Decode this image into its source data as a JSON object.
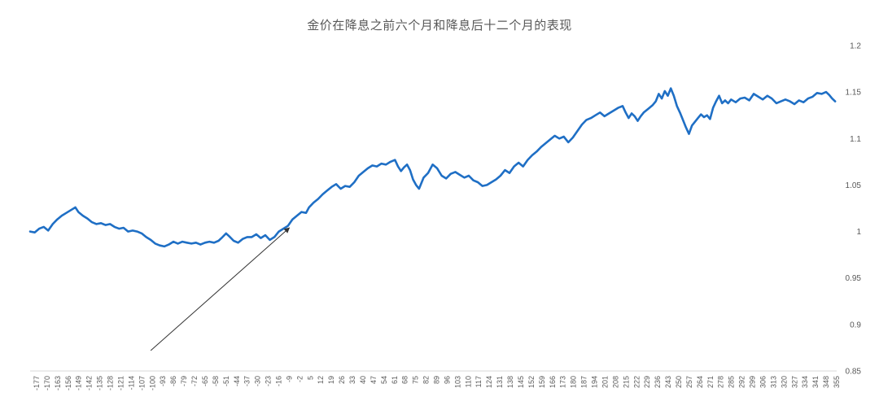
{
  "chart_data": {
    "type": "line",
    "title": "金价在降息之前六个月和降息后十二个月的表现",
    "xlabel": "",
    "ylabel": "",
    "ylim": [
      0.85,
      1.2
    ],
    "yticks": [
      0.85,
      0.9,
      0.95,
      1,
      1.05,
      1.1,
      1.15,
      1.2
    ],
    "ytick_labels": [
      "0.85",
      "0.9",
      "0.95",
      "1",
      "1.05",
      "1.1",
      "1.15",
      "1.2"
    ],
    "y_axis_side": "right",
    "grid": false,
    "legend": "none",
    "x_tick_labels": [
      "-177",
      "-170",
      "-163",
      "-156",
      "-149",
      "-142",
      "-135",
      "-128",
      "-121",
      "-114",
      "-107",
      "-100",
      "-93",
      "-86",
      "-79",
      "-72",
      "-65",
      "-58",
      "-51",
      "-44",
      "-37",
      "-30",
      "-23",
      "-16",
      "-9",
      "-2",
      "5",
      "12",
      "19",
      "26",
      "33",
      "40",
      "47",
      "54",
      "61",
      "68",
      "75",
      "82",
      "89",
      "96",
      "103",
      "110",
      "117",
      "124",
      "131",
      "138",
      "145",
      "152",
      "159",
      "166",
      "173",
      "180",
      "187",
      "194",
      "201",
      "208",
      "215",
      "222",
      "229",
      "236",
      "243",
      "250",
      "257",
      "264",
      "271",
      "278",
      "285",
      "292",
      "299",
      "306",
      "313",
      "320",
      "327",
      "334",
      "341",
      "348",
      "355"
    ],
    "xlim": [
      -178,
      357
    ],
    "colors": {
      "series": "#1f6fc5",
      "text": "#595959",
      "axis": "#d9d9d9",
      "arrow": "#333333"
    },
    "series": [
      {
        "points": [
          [
            -178,
            1.0
          ],
          [
            -175,
            0.999
          ],
          [
            -172,
            1.003
          ],
          [
            -169,
            1.005
          ],
          [
            -166,
            1.001
          ],
          [
            -163,
            1.008
          ],
          [
            -160,
            1.013
          ],
          [
            -157,
            1.017
          ],
          [
            -154,
            1.02
          ],
          [
            -151,
            1.023
          ],
          [
            -148,
            1.026
          ],
          [
            -146,
            1.021
          ],
          [
            -143,
            1.017
          ],
          [
            -140,
            1.014
          ],
          [
            -137,
            1.01
          ],
          [
            -134,
            1.008
          ],
          [
            -131,
            1.009
          ],
          [
            -128,
            1.007
          ],
          [
            -125,
            1.008
          ],
          [
            -122,
            1.005
          ],
          [
            -119,
            1.003
          ],
          [
            -116,
            1.004
          ],
          [
            -113,
            1.0
          ],
          [
            -110,
            1.001
          ],
          [
            -107,
            1.0
          ],
          [
            -104,
            0.998
          ],
          [
            -101,
            0.994
          ],
          [
            -98,
            0.991
          ],
          [
            -95,
            0.987
          ],
          [
            -92,
            0.985
          ],
          [
            -89,
            0.984
          ],
          [
            -86,
            0.986
          ],
          [
            -83,
            0.989
          ],
          [
            -80,
            0.987
          ],
          [
            -77,
            0.989
          ],
          [
            -74,
            0.988
          ],
          [
            -71,
            0.987
          ],
          [
            -68,
            0.988
          ],
          [
            -65,
            0.986
          ],
          [
            -62,
            0.988
          ],
          [
            -59,
            0.989
          ],
          [
            -56,
            0.988
          ],
          [
            -53,
            0.99
          ],
          [
            -51,
            0.993
          ],
          [
            -48,
            0.998
          ],
          [
            -46,
            0.995
          ],
          [
            -43,
            0.99
          ],
          [
            -40,
            0.988
          ],
          [
            -37,
            0.992
          ],
          [
            -34,
            0.994
          ],
          [
            -31,
            0.994
          ],
          [
            -28,
            0.997
          ],
          [
            -25,
            0.993
          ],
          [
            -22,
            0.996
          ],
          [
            -19,
            0.991
          ],
          [
            -16,
            0.994
          ],
          [
            -13,
            1.0
          ],
          [
            -10,
            1.003
          ],
          [
            -7,
            1.006
          ],
          [
            -4,
            1.013
          ],
          [
            -1,
            1.017
          ],
          [
            2,
            1.021
          ],
          [
            5,
            1.02
          ],
          [
            7,
            1.026
          ],
          [
            10,
            1.031
          ],
          [
            13,
            1.035
          ],
          [
            16,
            1.04
          ],
          [
            19,
            1.044
          ],
          [
            22,
            1.048
          ],
          [
            25,
            1.051
          ],
          [
            28,
            1.046
          ],
          [
            31,
            1.049
          ],
          [
            34,
            1.048
          ],
          [
            37,
            1.053
          ],
          [
            40,
            1.06
          ],
          [
            43,
            1.064
          ],
          [
            46,
            1.068
          ],
          [
            49,
            1.071
          ],
          [
            52,
            1.07
          ],
          [
            55,
            1.073
          ],
          [
            58,
            1.072
          ],
          [
            61,
            1.075
          ],
          [
            64,
            1.077
          ],
          [
            66,
            1.07
          ],
          [
            68,
            1.065
          ],
          [
            70,
            1.069
          ],
          [
            72,
            1.072
          ],
          [
            74,
            1.066
          ],
          [
            76,
            1.056
          ],
          [
            78,
            1.05
          ],
          [
            80,
            1.046
          ],
          [
            83,
            1.058
          ],
          [
            86,
            1.063
          ],
          [
            89,
            1.072
          ],
          [
            92,
            1.068
          ],
          [
            95,
            1.06
          ],
          [
            98,
            1.057
          ],
          [
            101,
            1.062
          ],
          [
            104,
            1.064
          ],
          [
            107,
            1.061
          ],
          [
            110,
            1.058
          ],
          [
            113,
            1.06
          ],
          [
            116,
            1.055
          ],
          [
            119,
            1.053
          ],
          [
            122,
            1.049
          ],
          [
            125,
            1.05
          ],
          [
            128,
            1.053
          ],
          [
            131,
            1.056
          ],
          [
            134,
            1.06
          ],
          [
            137,
            1.066
          ],
          [
            140,
            1.063
          ],
          [
            143,
            1.07
          ],
          [
            146,
            1.074
          ],
          [
            149,
            1.07
          ],
          [
            152,
            1.077
          ],
          [
            155,
            1.082
          ],
          [
            158,
            1.086
          ],
          [
            161,
            1.091
          ],
          [
            164,
            1.095
          ],
          [
            167,
            1.099
          ],
          [
            170,
            1.103
          ],
          [
            173,
            1.1
          ],
          [
            176,
            1.102
          ],
          [
            179,
            1.096
          ],
          [
            182,
            1.101
          ],
          [
            185,
            1.108
          ],
          [
            188,
            1.115
          ],
          [
            191,
            1.12
          ],
          [
            194,
            1.122
          ],
          [
            197,
            1.125
          ],
          [
            200,
            1.128
          ],
          [
            203,
            1.124
          ],
          [
            206,
            1.127
          ],
          [
            209,
            1.13
          ],
          [
            212,
            1.133
          ],
          [
            215,
            1.135
          ],
          [
            217,
            1.128
          ],
          [
            219,
            1.122
          ],
          [
            221,
            1.127
          ],
          [
            223,
            1.124
          ],
          [
            225,
            1.119
          ],
          [
            227,
            1.124
          ],
          [
            229,
            1.128
          ],
          [
            232,
            1.132
          ],
          [
            235,
            1.136
          ],
          [
            237,
            1.14
          ],
          [
            239,
            1.148
          ],
          [
            241,
            1.143
          ],
          [
            243,
            1.151
          ],
          [
            245,
            1.146
          ],
          [
            247,
            1.154
          ],
          [
            249,
            1.146
          ],
          [
            251,
            1.135
          ],
          [
            253,
            1.128
          ],
          [
            255,
            1.12
          ],
          [
            257,
            1.112
          ],
          [
            259,
            1.105
          ],
          [
            261,
            1.114
          ],
          [
            263,
            1.118
          ],
          [
            265,
            1.122
          ],
          [
            267,
            1.126
          ],
          [
            269,
            1.123
          ],
          [
            271,
            1.125
          ],
          [
            273,
            1.121
          ],
          [
            275,
            1.133
          ],
          [
            277,
            1.14
          ],
          [
            279,
            1.146
          ],
          [
            281,
            1.138
          ],
          [
            283,
            1.141
          ],
          [
            285,
            1.138
          ],
          [
            287,
            1.142
          ],
          [
            290,
            1.139
          ],
          [
            293,
            1.143
          ],
          [
            296,
            1.144
          ],
          [
            299,
            1.141
          ],
          [
            302,
            1.148
          ],
          [
            305,
            1.145
          ],
          [
            308,
            1.142
          ],
          [
            311,
            1.146
          ],
          [
            314,
            1.143
          ],
          [
            317,
            1.138
          ],
          [
            320,
            1.14
          ],
          [
            323,
            1.142
          ],
          [
            326,
            1.14
          ],
          [
            329,
            1.137
          ],
          [
            332,
            1.141
          ],
          [
            335,
            1.139
          ],
          [
            338,
            1.143
          ],
          [
            341,
            1.145
          ],
          [
            344,
            1.149
          ],
          [
            347,
            1.148
          ],
          [
            350,
            1.15
          ],
          [
            352,
            1.147
          ],
          [
            354,
            1.143
          ],
          [
            356,
            1.14
          ]
        ]
      }
    ],
    "annotations": [
      {
        "type": "arrow",
        "from": [
          -98,
          0.872
        ],
        "to": [
          -6,
          1.004
        ]
      }
    ]
  }
}
